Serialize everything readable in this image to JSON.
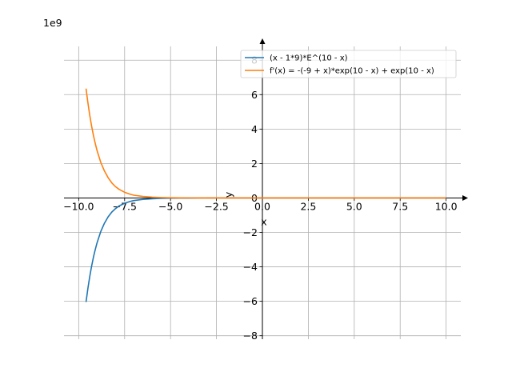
{
  "chart_data": {
    "type": "line",
    "title": "",
    "xlabel": "x",
    "ylabel": "y",
    "y_scale_label": "1e9",
    "xlim": [
      -10.8,
      10.8
    ],
    "ylim": [
      -8.2,
      8.8
    ],
    "x_ticks": [
      -10.0,
      -7.5,
      -5.0,
      -2.5,
      0.0,
      2.5,
      5.0,
      7.5,
      10.0
    ],
    "x_tick_labels": [
      "−10.0",
      "−7.5",
      "−5.0",
      "−2.5",
      "0.0",
      "2.5",
      "5.0",
      "7.5",
      "10.0"
    ],
    "y_ticks": [
      -8,
      -6,
      -4,
      -2,
      0,
      2,
      4,
      6,
      8
    ],
    "y_tick_labels": [
      "−8",
      "−6",
      "−4",
      "−2",
      "0",
      "2",
      "4",
      "6",
      "8"
    ],
    "grid": true,
    "legend_position": "top-right",
    "series": [
      {
        "name": "(x - 1*9)*E^(10 - x)",
        "color": "#1f77b4",
        "x": [
          -9.6,
          -9.5,
          -9.4,
          -9.3,
          -9.2,
          -9.1,
          -9.0,
          -8.8,
          -8.6,
          -8.4,
          -8.2,
          -8.0,
          -7.8,
          -7.5,
          -7.2,
          -7.0,
          -6.5,
          -6.0,
          -5.5,
          -5.0,
          -4.5,
          -4.0,
          -3.5,
          -3.0,
          -2.5,
          -2.0,
          -1.0,
          0.0,
          1.0,
          2.0,
          4.0,
          6.0,
          8.0,
          10.0
        ],
        "y": [
          -6.04,
          -5.26,
          -4.57,
          -3.98,
          -3.45,
          -3.0,
          -2.6,
          -1.95,
          -1.47,
          -1.1,
          -0.82,
          -0.62,
          -0.46,
          -0.31,
          -0.2,
          -0.15,
          -0.082,
          -0.044,
          -0.024,
          -0.013,
          -0.0068,
          -0.0036,
          -0.0019,
          -0.001,
          -0.0005,
          -0.00026,
          -6e-05,
          -2.2e-06,
          0,
          0,
          0,
          0,
          0,
          0
        ]
      },
      {
        "name": "f'(x) = -(-9 + x)*exp(10 - x) + exp(10 - x)",
        "color": "#ff7f0e",
        "x": [
          -9.6,
          -9.5,
          -9.4,
          -9.3,
          -9.2,
          -9.1,
          -9.0,
          -8.8,
          -8.6,
          -8.4,
          -8.2,
          -8.0,
          -7.8,
          -7.5,
          -7.2,
          -7.0,
          -6.5,
          -6.0,
          -5.5,
          -5.0,
          -4.5,
          -4.0,
          -3.5,
          -3.0,
          -2.5,
          -2.0,
          -1.0,
          0.0,
          1.0,
          2.0,
          4.0,
          6.0,
          8.0,
          10.0
        ],
        "y": [
          6.35,
          5.54,
          4.81,
          4.19,
          3.64,
          3.17,
          2.75,
          2.07,
          1.57,
          1.18,
          0.88,
          0.66,
          0.5,
          0.33,
          0.22,
          0.16,
          0.088,
          0.047,
          0.026,
          0.014,
          0.0073,
          0.0039,
          0.0021,
          0.0011,
          0.0006,
          0.0003,
          7e-05,
          2.2e-06,
          0,
          0,
          0,
          0,
          0,
          0
        ]
      }
    ]
  }
}
